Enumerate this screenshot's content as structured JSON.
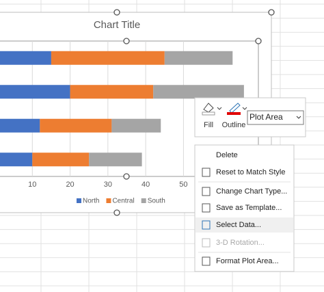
{
  "chart_data": {
    "type": "bar",
    "orientation": "horizontal",
    "stacked": true,
    "title": "Chart Title",
    "categories": [
      null,
      null,
      null,
      null
    ],
    "series": [
      {
        "name": "North",
        "color": "#4472c4",
        "values": [
          15,
          20,
          12,
          10
        ]
      },
      {
        "name": "Central",
        "color": "#ed7d31",
        "values": [
          30,
          22,
          19,
          15
        ]
      },
      {
        "name": "South",
        "color": "#a5a5a5",
        "values": [
          18,
          24,
          13,
          14
        ]
      }
    ],
    "xlim": [
      0,
      70
    ],
    "xticks": [
      10,
      20,
      30,
      40,
      50
    ],
    "grid": true,
    "legend": "bottom"
  },
  "toolbar": {
    "fill": "Fill",
    "outline": "Outline",
    "dropdown": "Plot Area"
  },
  "menu": {
    "items": [
      {
        "label": "Delete",
        "disabled": false,
        "highlighted": false
      },
      {
        "label": "Reset to Match Style",
        "disabled": false,
        "highlighted": false
      },
      {
        "label": "Change Chart Type...",
        "disabled": false,
        "highlighted": false
      },
      {
        "label": "Save as Template...",
        "disabled": false,
        "highlighted": false
      },
      {
        "label": "Select Data...",
        "disabled": false,
        "highlighted": true
      },
      {
        "label": "3-D Rotation...",
        "disabled": true,
        "highlighted": false
      },
      {
        "label": "Format Plot Area...",
        "disabled": false,
        "highlighted": false
      }
    ]
  }
}
